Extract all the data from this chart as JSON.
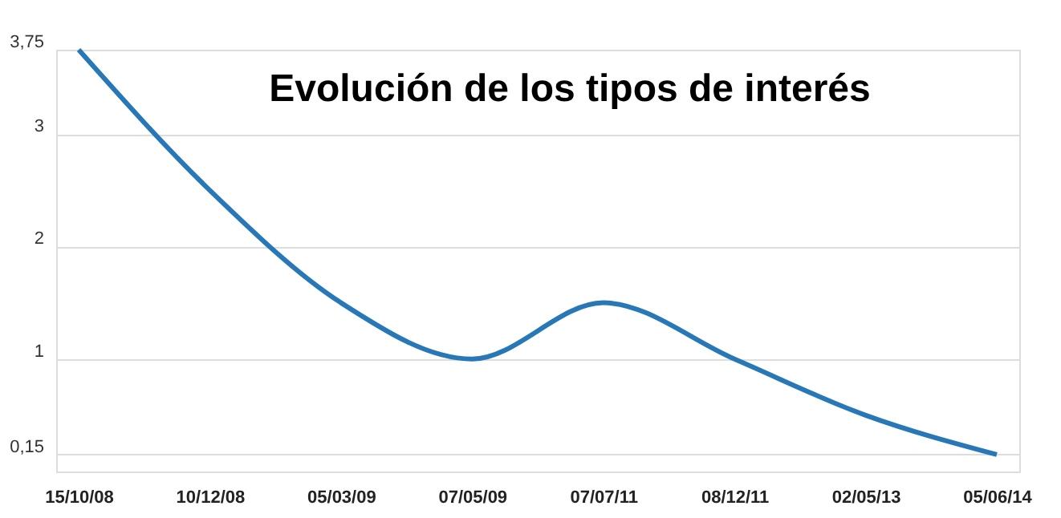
{
  "chart_data": {
    "type": "line",
    "title": "Evolución de los tipos de interés",
    "categories": [
      "15/10/08",
      "10/12/08",
      "05/03/09",
      "07/05/09",
      "07/07/11",
      "08/12/11",
      "02/05/13",
      "05/06/14"
    ],
    "series": [
      {
        "color": "#2878b8",
        "values": [
          3.75,
          2.5,
          1.5,
          1.0,
          1.5,
          1.0,
          0.5,
          0.15
        ]
      }
    ],
    "ylim": [
      0,
      3.75
    ],
    "yticks": [
      {
        "value": 0.15,
        "label": "0,15"
      },
      1,
      2,
      3,
      {
        "value": 3.75,
        "label": "3,75"
      }
    ],
    "grid": "y",
    "marker": "none",
    "line_style": "solid"
  }
}
